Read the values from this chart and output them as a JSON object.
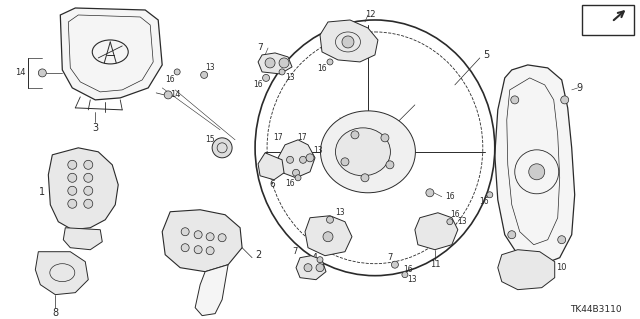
{
  "bg_color": "#ffffff",
  "fig_width": 6.4,
  "fig_height": 3.19,
  "dpi": 100,
  "diagram_code_text": "TK44B3110",
  "line_color": "#2a2a2a",
  "light_fill": "#f5f5f5",
  "mid_fill": "#e8e8e8",
  "dark_fill": "#d8d8d8"
}
